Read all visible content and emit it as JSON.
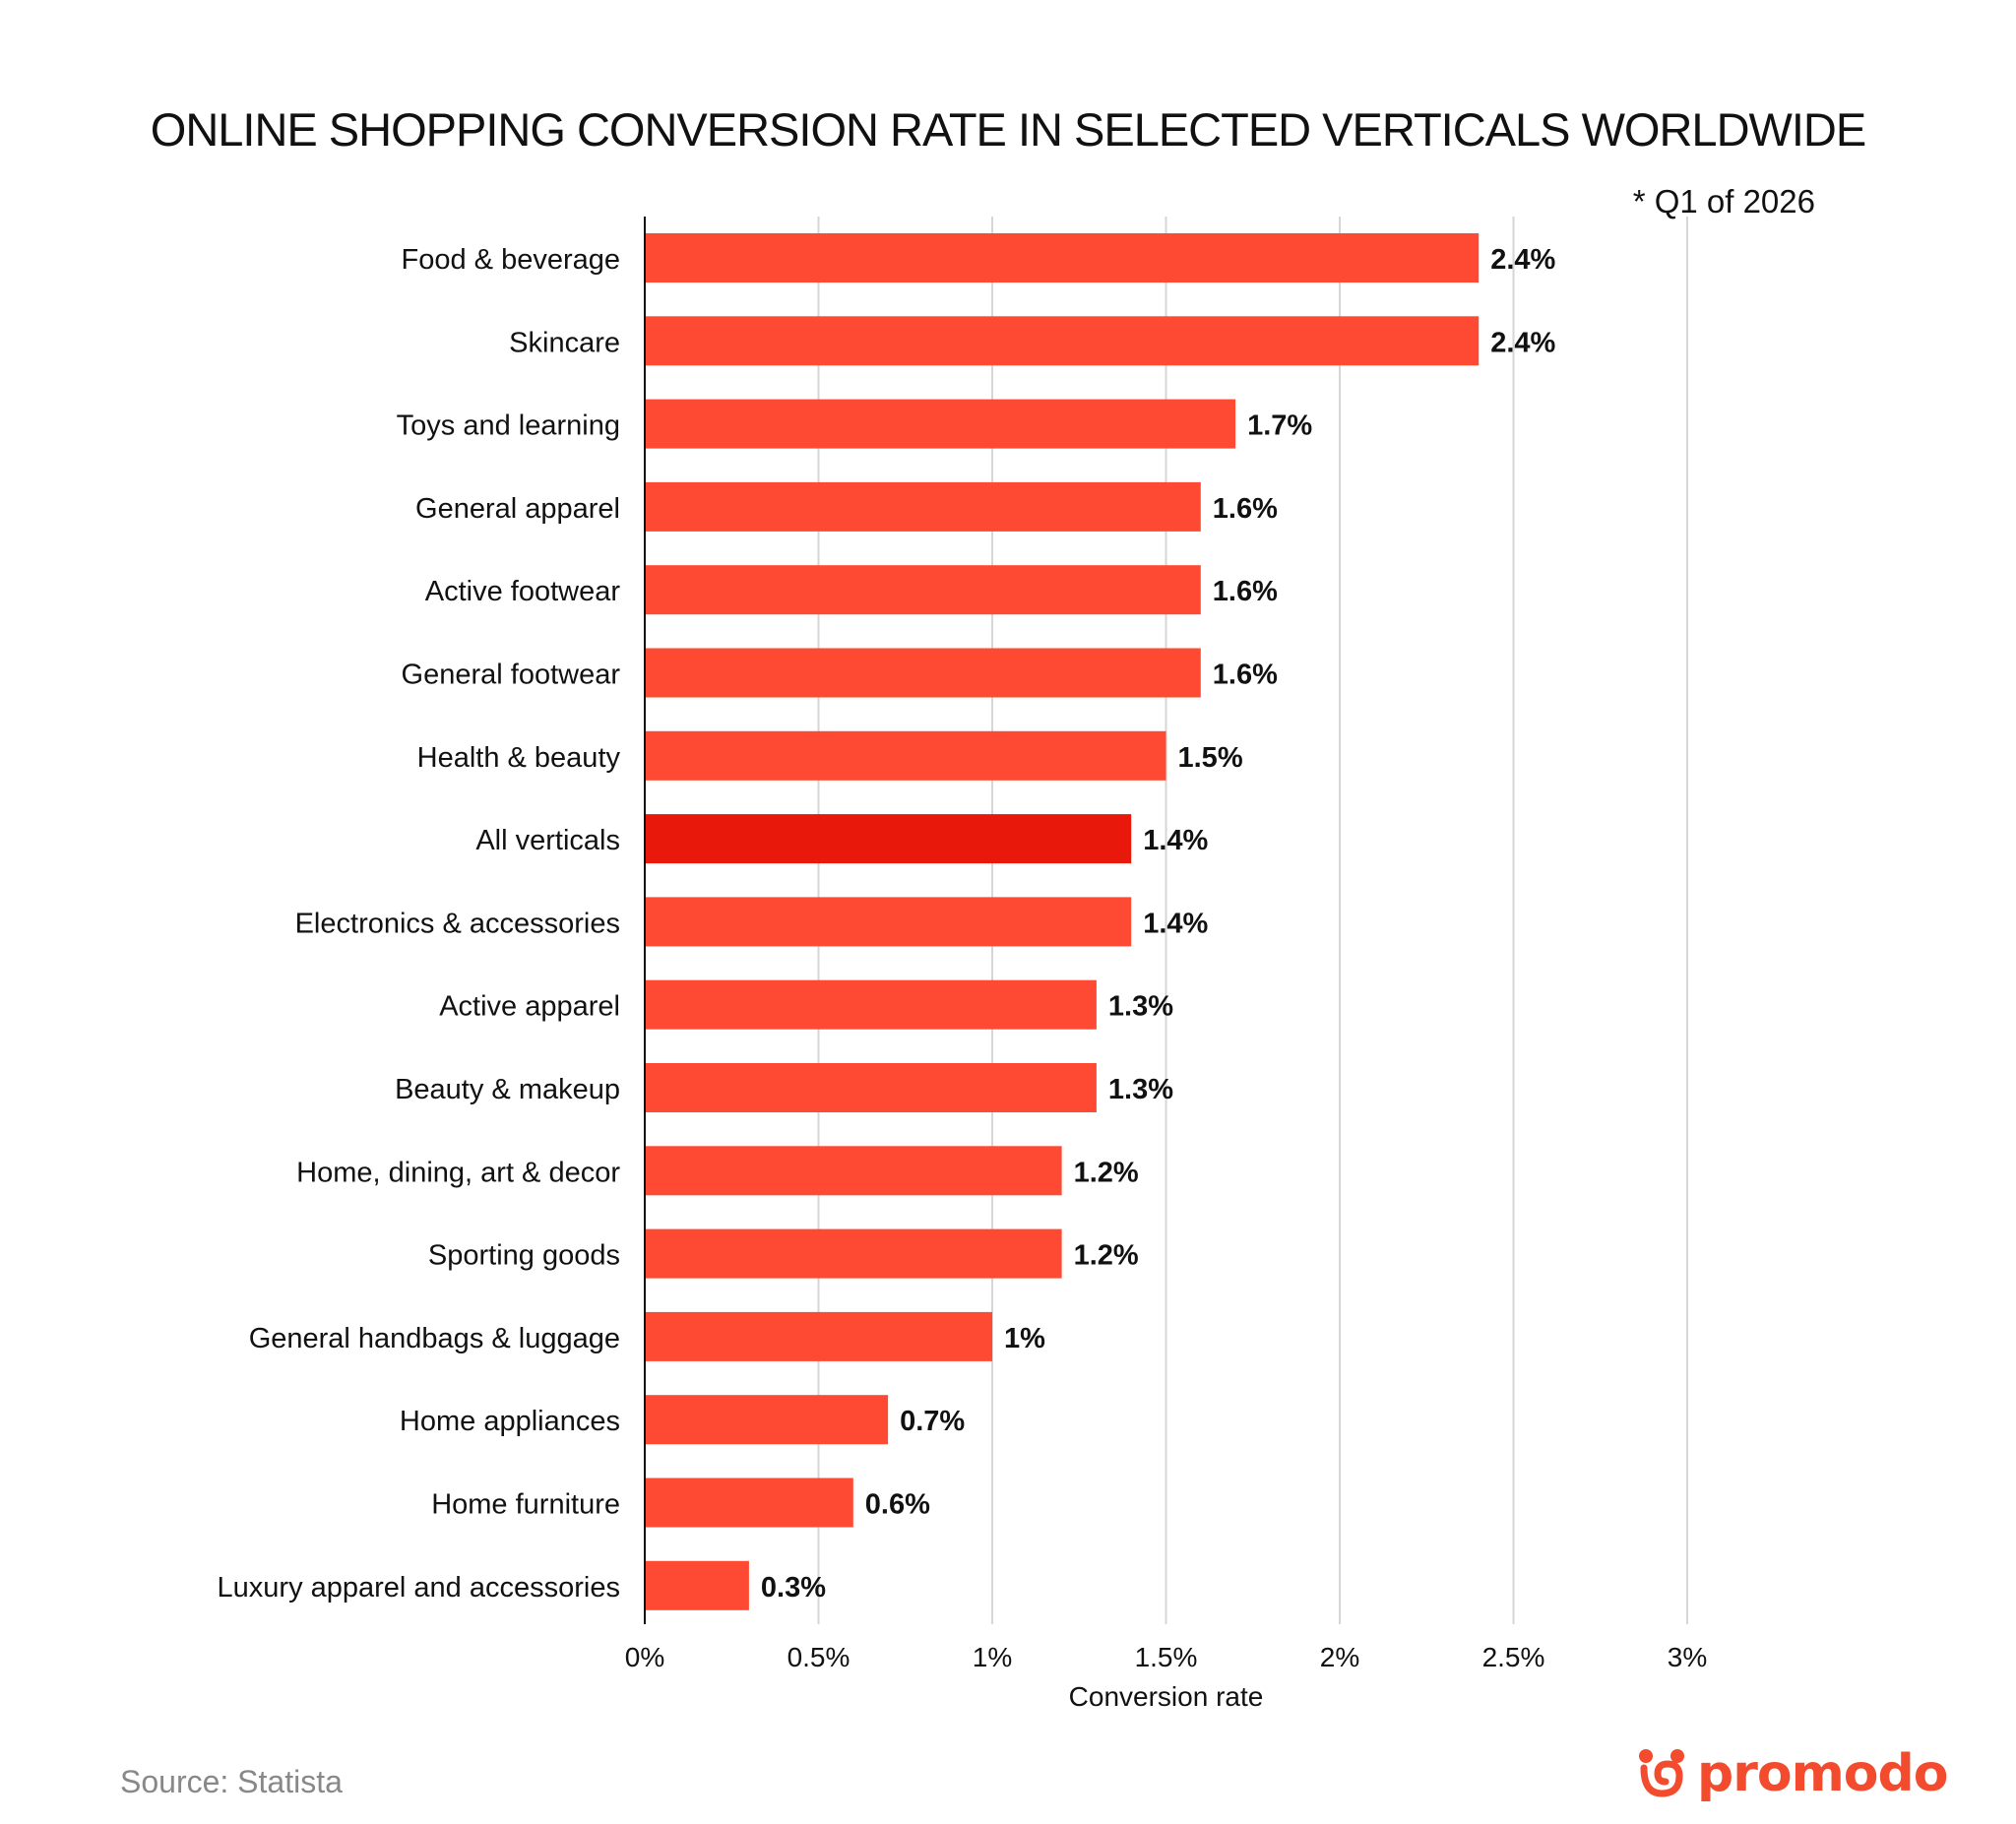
{
  "title": "ONLINE SHOPPING CONVERSION RATE IN SELECTED VERTICALS WORLDWIDE",
  "note": "* Q1 of 2026",
  "source": "Source: Statista",
  "brand": {
    "name": "promodo",
    "logo_icon": "promodo-logo-icon"
  },
  "colors": {
    "bar": "#fe4a33",
    "highlight": "#e8180a",
    "grid": "#d6d6d6",
    "axis": "#111111",
    "brand": "#f24b2e"
  },
  "chart_data": {
    "type": "bar",
    "orientation": "horizontal",
    "categories": [
      "Food & beverage",
      "Skincare",
      "Toys and learning",
      "General apparel",
      "Active footwear",
      "General footwear",
      "Health & beauty",
      "All verticals",
      "Electronics & accessories",
      "Active apparel",
      "Beauty & makeup",
      "Home, dining, art & decor",
      "Sporting goods",
      "General handbags & luggage",
      "Home appliances",
      "Home furniture",
      "Luxury apparel and accessories"
    ],
    "values": [
      2.4,
      2.4,
      1.7,
      1.6,
      1.6,
      1.6,
      1.5,
      1.4,
      1.4,
      1.3,
      1.3,
      1.2,
      1.2,
      1.0,
      0.7,
      0.6,
      0.3
    ],
    "value_labels": [
      "2.4%",
      "2.4%",
      "1.7%",
      "1.6%",
      "1.6%",
      "1.6%",
      "1.5%",
      "1.4%",
      "1.4%",
      "1.3%",
      "1.3%",
      "1.2%",
      "1.2%",
      "1%",
      "0.7%",
      "0.6%",
      "0.3%"
    ],
    "highlight_category": "All verticals",
    "x_ticks": [
      0,
      0.5,
      1,
      1.5,
      2,
      2.5,
      3
    ],
    "x_tick_labels": [
      "0%",
      "0.5%",
      "1%",
      "1.5%",
      "2%",
      "2.5%",
      "3%"
    ],
    "xlim": [
      0,
      3
    ],
    "xlabel": "Conversion rate",
    "ylabel": "",
    "grid": true,
    "unit": "%"
  }
}
